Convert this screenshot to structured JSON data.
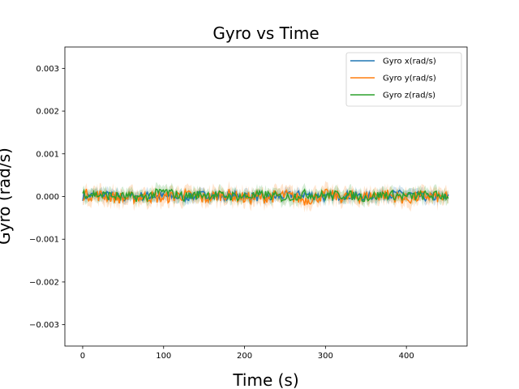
{
  "chart_data": {
    "type": "line",
    "title": "Gyro vs Time",
    "xlabel": "Time (s)",
    "ylabel": "Gyro (rad/s)",
    "xlim": [
      -22,
      475
    ],
    "ylim": [
      -0.0035,
      0.0035
    ],
    "x_ticks": [
      0,
      100,
      200,
      300,
      400
    ],
    "x_tick_labels": [
      "0",
      "100",
      "200",
      "300",
      "400"
    ],
    "y_ticks": [
      -0.003,
      -0.002,
      -0.001,
      0.0,
      0.001,
      0.002,
      0.003
    ],
    "y_tick_labels": [
      "−0.003",
      "−0.002",
      "−0.001",
      "0.000",
      "0.001",
      "0.002",
      "0.003"
    ],
    "grid": false,
    "legend_position": "top-right",
    "series": [
      {
        "name": "Gyro x(rad/s)",
        "color": "#1f77b4",
        "x": [
          0,
          25,
          50,
          75,
          100,
          125,
          150,
          175,
          200,
          225,
          250,
          275,
          300,
          325,
          350,
          375,
          400,
          425,
          452
        ],
        "y": [
          0.0,
          5e-05,
          -3e-05,
          2e-05,
          0.0,
          -2e-05,
          4e-05,
          0.0,
          3e-05,
          -4e-05,
          2e-05,
          5e-05,
          -2e-05,
          3e-05,
          0.0,
          4e-05,
          6e-05,
          -2e-05,
          -3e-05
        ]
      },
      {
        "name": "Gyro y(rad/s)",
        "color": "#ff7f0e",
        "x": [
          0,
          25,
          50,
          75,
          100,
          125,
          150,
          175,
          200,
          225,
          250,
          275,
          300,
          325,
          350,
          375,
          400,
          425,
          452
        ],
        "y": [
          5e-05,
          2e-05,
          -4e-05,
          0.0,
          -3e-05,
          4e-05,
          -5e-05,
          6e-05,
          -4e-05,
          -2e-05,
          3e-05,
          -8e-05,
          4e-05,
          -2e-05,
          0.0,
          5e-05,
          -6e-05,
          2e-05,
          -4e-05
        ]
      },
      {
        "name": "Gyro z(rad/s)",
        "color": "#2ca02c",
        "x": [
          0,
          25,
          50,
          75,
          100,
          125,
          150,
          175,
          200,
          225,
          250,
          275,
          300,
          325,
          350,
          375,
          400,
          425,
          452
        ],
        "y": [
          8e-05,
          3e-05,
          0.0,
          -2e-05,
          0.00012,
          0.0,
          5e-05,
          2e-05,
          0.0,
          4e-05,
          -3e-05,
          6e-05,
          2e-05,
          4e-05,
          -2e-05,
          5e-05,
          0.0,
          3e-05,
          2e-05
        ]
      }
    ]
  }
}
